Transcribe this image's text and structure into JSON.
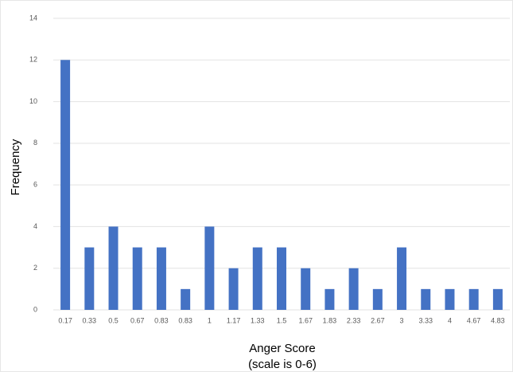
{
  "chart_data": {
    "type": "bar",
    "categories": [
      "0.17",
      "0.33",
      "0.5",
      "0.67",
      "0.83",
      "0.83",
      "1",
      "1.17",
      "1.33",
      "1.5",
      "1.67",
      "1.83",
      "2.33",
      "2.67",
      "3",
      "3.33",
      "4",
      "4.67",
      "4.83"
    ],
    "values": [
      12,
      3,
      4,
      3,
      3,
      1,
      4,
      2,
      3,
      3,
      2,
      1,
      2,
      1,
      3,
      1,
      1,
      1,
      1
    ],
    "color": "#4472c4",
    "y_label": "Frequency",
    "x_label": [
      "Anger Score",
      "(scale is 0-6)"
    ],
    "ylim": [
      0,
      14
    ],
    "yticks": [
      0,
      2,
      4,
      6,
      8,
      10,
      12,
      14
    ],
    "grid": true
  }
}
